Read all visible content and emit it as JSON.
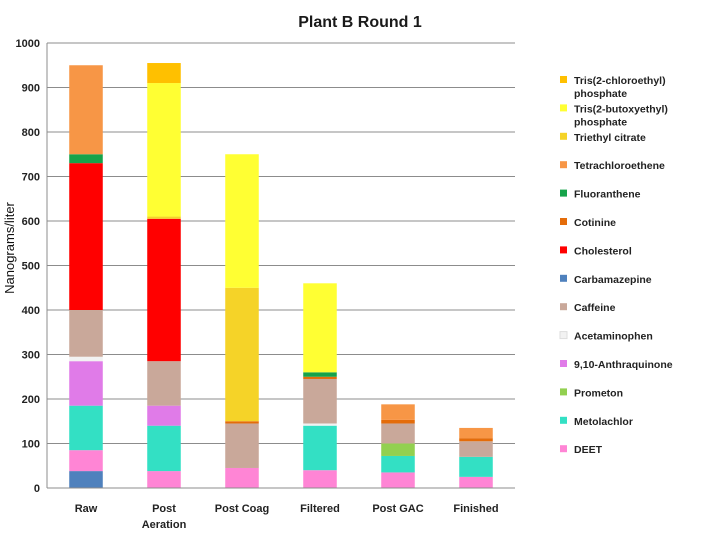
{
  "chart_data": {
    "type": "bar",
    "stacked": true,
    "title": "Plant B Round 1",
    "ylabel": "Nanograms/liter",
    "xlabel": "",
    "ylim": [
      0,
      1000
    ],
    "yticks": [
      0,
      100,
      200,
      300,
      400,
      500,
      600,
      700,
      800,
      900,
      1000
    ],
    "grid": true,
    "legend_position": "right",
    "categories": [
      [
        "Raw"
      ],
      [
        "Post",
        "Aeration"
      ],
      [
        "Post Coag"
      ],
      [
        "Filtered"
      ],
      [
        "Post GAC"
      ],
      [
        "Finished"
      ]
    ],
    "series": [
      {
        "name": "Carbamazepine",
        "color": "#4f81bd",
        "values": [
          38,
          0,
          0,
          0,
          0,
          0
        ]
      },
      {
        "name": "DEET",
        "color": "#ff85d5",
        "values": [
          47,
          38,
          45,
          40,
          35,
          25
        ]
      },
      {
        "name": "Metolachlor",
        "color": "#33e0c4",
        "values": [
          100,
          102,
          0,
          100,
          37,
          45
        ]
      },
      {
        "name": "Prometon",
        "color": "#92d050",
        "values": [
          0,
          0,
          0,
          0,
          28,
          0
        ]
      },
      {
        "name": "9,10-Anthraquinone",
        "color": "#e07be8",
        "values": [
          100,
          45,
          0,
          0,
          0,
          0
        ]
      },
      {
        "name": "Acetaminophen",
        "color": "#f2f2f2",
        "values": [
          10,
          0,
          0,
          5,
          0,
          0
        ]
      },
      {
        "name": "Caffeine",
        "color": "#c9a89a",
        "values": [
          105,
          100,
          100,
          100,
          45,
          35
        ]
      },
      {
        "name": "Cotinine",
        "color": "#e46c0a",
        "values": [
          0,
          0,
          5,
          5,
          8,
          7
        ]
      },
      {
        "name": "Cholesterol",
        "color": "#ff0000",
        "values": [
          330,
          320,
          0,
          0,
          0,
          0
        ]
      },
      {
        "name": "Fluoranthene",
        "color": "#16a34a",
        "values": [
          20,
          0,
          0,
          10,
          0,
          0
        ]
      },
      {
        "name": "Tetrachloroethene",
        "color": "#f79646",
        "values": [
          200,
          0,
          0,
          0,
          35,
          23
        ]
      },
      {
        "name": "Triethyl citrate",
        "color": "#f5d328",
        "values": [
          0,
          5,
          300,
          0,
          0,
          0
        ]
      },
      {
        "name": "Tris(2-butoxyethyl) phosphate",
        "color": "#ffff33",
        "values": [
          0,
          300,
          300,
          200,
          0,
          0
        ]
      },
      {
        "name": "Tris(2-chloroethyl) phosphate",
        "color": "#ffc000",
        "values": [
          0,
          45,
          0,
          0,
          0,
          0
        ]
      }
    ],
    "legend": [
      {
        "lines": [
          "Tris(2-chloroethyl)",
          "phosphate"
        ],
        "color": "#ffc000"
      },
      {
        "lines": [
          "Tris(2-butoxyethyl)",
          "phosphate"
        ],
        "color": "#ffff33"
      },
      {
        "lines": [
          "Triethyl citrate"
        ],
        "color": "#f5d328"
      },
      {
        "lines": [
          "Tetrachloroethene"
        ],
        "color": "#f79646"
      },
      {
        "lines": [
          "Fluoranthene"
        ],
        "color": "#16a34a"
      },
      {
        "lines": [
          "Cotinine"
        ],
        "color": "#e46c0a"
      },
      {
        "lines": [
          "Cholesterol"
        ],
        "color": "#ff0000"
      },
      {
        "lines": [
          "Carbamazepine"
        ],
        "color": "#4f81bd"
      },
      {
        "lines": [
          "Caffeine"
        ],
        "color": "#c9a89a"
      },
      {
        "lines": [
          "Acetaminophen"
        ],
        "color": "#f2f2f2"
      },
      {
        "lines": [
          "9,10-Anthraquinone"
        ],
        "color": "#e07be8"
      },
      {
        "lines": [
          "Prometon"
        ],
        "color": "#92d050"
      },
      {
        "lines": [
          "Metolachlor"
        ],
        "color": "#33e0c4"
      },
      {
        "lines": [
          "DEET"
        ],
        "color": "#ff85d5"
      }
    ]
  }
}
